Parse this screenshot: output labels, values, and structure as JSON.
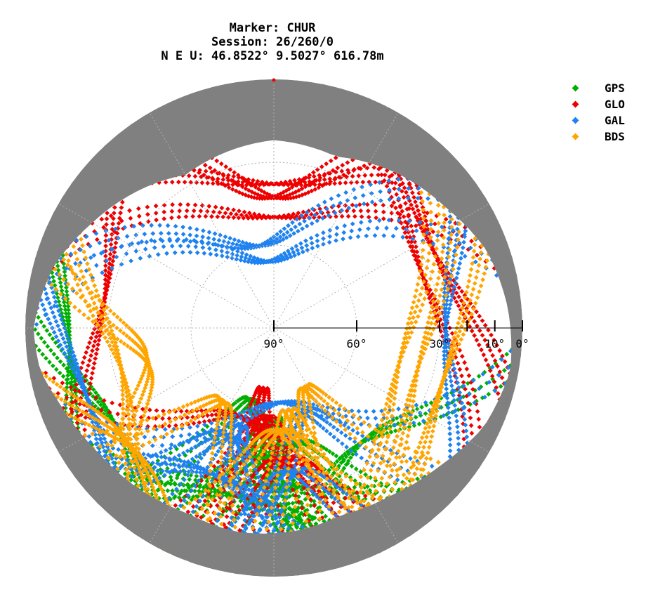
{
  "header": {
    "line1": "Marker: CHUR",
    "line2": "Session: 26/260/0",
    "line3": "N E U: 46.8522° 9.5027° 616.78m"
  },
  "chart_data": {
    "type": "scatter",
    "subtype": "polar-skyplot",
    "radial_axis": {
      "quantity": "elevation",
      "center": 90,
      "edge": 0,
      "tick_labels": [
        "90°",
        "60°",
        "30°",
        "10°",
        "0°"
      ],
      "tick_values": [
        90,
        60,
        30,
        10,
        0
      ]
    },
    "grid": true,
    "grid_style": "dotted",
    "legend_position": "top-right",
    "obstruction_mask_color": "#808080",
    "series": [
      {
        "name": "GPS",
        "color": "#00b000",
        "tracks": [
          {
            "az_start": 250,
            "az_end": 120,
            "el_max": 35
          },
          {
            "az_start": 235,
            "az_end": 150,
            "el_max": 30
          },
          {
            "az_start": 215,
            "az_end": 160,
            "el_max": 45
          },
          {
            "az_start": 200,
            "az_end": 170,
            "el_max": 55
          },
          {
            "az_start": 185,
            "az_end": 175,
            "el_max": 60
          },
          {
            "az_start": 275,
            "az_end": 200,
            "el_max": 25
          },
          {
            "az_start": 140,
            "az_end": 200,
            "el_max": 50
          },
          {
            "az_start": 95,
            "az_end": 190,
            "el_max": 40
          },
          {
            "az_start": 300,
            "az_end": 230,
            "el_max": 18
          },
          {
            "az_start": 170,
            "az_end": 225,
            "el_max": 65
          }
        ]
      },
      {
        "name": "GLO",
        "color": "#ee0000",
        "tracks": [
          {
            "az_start": 320,
            "az_end": 40,
            "el_max": 45
          },
          {
            "az_start": 300,
            "az_end": 60,
            "el_max": 40
          },
          {
            "az_start": 280,
            "az_end": 80,
            "el_max": 52
          },
          {
            "az_start": 20,
            "az_end": 110,
            "el_max": 28
          },
          {
            "az_start": 10,
            "az_end": 130,
            "el_max": 35
          },
          {
            "az_start": 230,
            "az_end": 330,
            "el_max": 30
          },
          {
            "az_start": 180,
            "az_end": 200,
            "el_max": 70
          },
          {
            "az_start": 160,
            "az_end": 210,
            "el_max": 60
          },
          {
            "az_start": 200,
            "az_end": 150,
            "el_max": 45
          },
          {
            "az_start": 260,
            "az_end": 140,
            "el_max": 58
          }
        ]
      },
      {
        "name": "GAL",
        "color": "#1e82f0",
        "tracks": [
          {
            "az_start": 280,
            "az_end": 60,
            "el_max": 62
          },
          {
            "az_start": 270,
            "az_end": 80,
            "el_max": 68
          },
          {
            "az_start": 255,
            "az_end": 95,
            "el_max": 65
          },
          {
            "az_start": 245,
            "az_end": 160,
            "el_max": 35
          },
          {
            "az_start": 230,
            "az_end": 175,
            "el_max": 50
          },
          {
            "az_start": 195,
            "az_end": 150,
            "el_max": 40
          },
          {
            "az_start": 45,
            "az_end": 135,
            "el_max": 30
          },
          {
            "az_start": 210,
            "az_end": 190,
            "el_max": 55
          },
          {
            "az_start": 130,
            "az_end": 190,
            "el_max": 60
          },
          {
            "az_start": 290,
            "az_end": 210,
            "el_max": 20
          }
        ]
      },
      {
        "name": "BDS",
        "color": "#ffa500",
        "tracks": [
          {
            "az_start": 305,
            "az_end": 205,
            "el_max": 35
          },
          {
            "az_start": 290,
            "az_end": 220,
            "el_max": 45
          },
          {
            "az_start": 240,
            "az_end": 190,
            "el_max": 60
          },
          {
            "az_start": 55,
            "az_end": 160,
            "el_max": 28
          },
          {
            "az_start": 40,
            "az_end": 170,
            "el_max": 38
          },
          {
            "az_start": 30,
            "az_end": 180,
            "el_max": 45
          },
          {
            "az_start": 185,
            "az_end": 155,
            "el_max": 62
          },
          {
            "az_start": 210,
            "az_end": 145,
            "el_max": 55
          },
          {
            "az_start": 260,
            "az_end": 200,
            "el_max": 25
          },
          {
            "az_start": 130,
            "az_end": 175,
            "el_max": 68
          }
        ]
      }
    ]
  }
}
